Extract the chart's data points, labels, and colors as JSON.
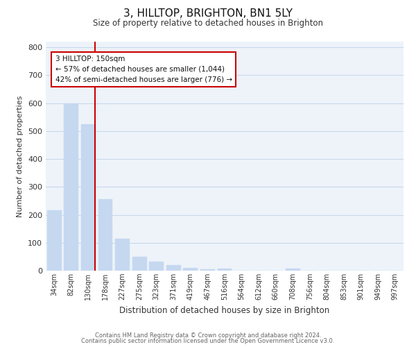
{
  "title": "3, HILLTOP, BRIGHTON, BN1 5LY",
  "subtitle": "Size of property relative to detached houses in Brighton",
  "xlabel": "Distribution of detached houses by size in Brighton",
  "ylabel": "Number of detached properties",
  "bar_labels": [
    "34sqm",
    "82sqm",
    "130sqm",
    "178sqm",
    "227sqm",
    "275sqm",
    "323sqm",
    "371sqm",
    "419sqm",
    "467sqm",
    "516sqm",
    "564sqm",
    "612sqm",
    "660sqm",
    "708sqm",
    "756sqm",
    "804sqm",
    "853sqm",
    "901sqm",
    "949sqm",
    "997sqm"
  ],
  "bar_values": [
    215,
    600,
    525,
    255,
    115,
    50,
    33,
    20,
    10,
    5,
    8,
    0,
    0,
    0,
    8,
    0,
    0,
    0,
    0,
    0,
    0
  ],
  "bar_color": "#c5d8f0",
  "bar_edge_color": "#c5d8f0",
  "marker_line_color": "#cc0000",
  "annotation_line1": "3 HILLTOP: 150sqm",
  "annotation_line2": "← 57% of detached houses are smaller (1,044)",
  "annotation_line3": "42% of semi-detached houses are larger (776) →",
  "ylim": [
    0,
    820
  ],
  "yticks": [
    0,
    100,
    200,
    300,
    400,
    500,
    600,
    700,
    800
  ],
  "footer1": "Contains HM Land Registry data © Crown copyright and database right 2024.",
  "footer2": "Contains public sector information licensed under the Open Government Licence v3.0.",
  "bg_color": "#ffffff",
  "plot_bg_color": "#eef3fa",
  "grid_color": "#c8d8ea",
  "annotation_box_color": "#cc0000"
}
